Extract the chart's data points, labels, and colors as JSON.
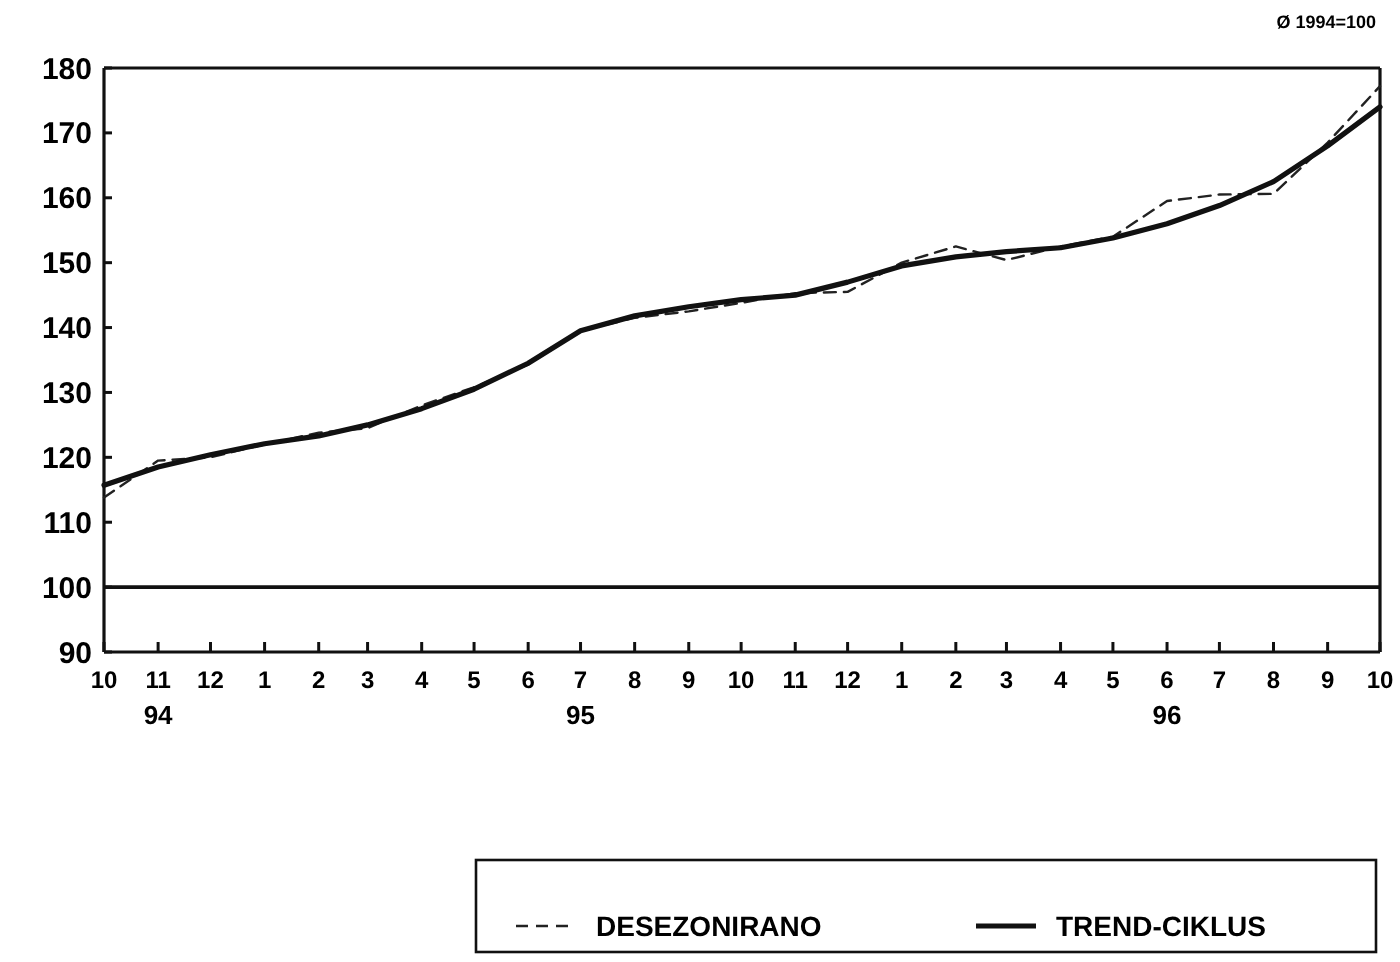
{
  "chart_data": {
    "type": "line",
    "x": [
      "1994-10",
      "1994-11",
      "1994-12",
      "1995-01",
      "1995-02",
      "1995-03",
      "1995-04",
      "1995-05",
      "1995-06",
      "1995-07",
      "1995-08",
      "1995-09",
      "1995-10",
      "1995-11",
      "1995-12",
      "1996-01",
      "1996-02",
      "1996-03",
      "1996-04",
      "1996-05",
      "1996-06",
      "1996-07",
      "1996-08",
      "1996-09",
      "1996-10"
    ],
    "series": [
      {
        "name": "DESEZONIRANO",
        "color": "#222222",
        "line_style": "dashed",
        "values": [
          113.8,
          119.5,
          120,
          122,
          123.8,
          124.5,
          128,
          130.8,
          134.3,
          139.5,
          141.5,
          142.5,
          143.8,
          145.3,
          145.5,
          150,
          152.5,
          150.4,
          152.5,
          154,
          159.5,
          160.5,
          160.6,
          168.5,
          177.2
        ]
      },
      {
        "name": "TREND-CIKLUS",
        "color": "#111111",
        "line_style": "solid",
        "values": [
          115.7,
          118.5,
          120.4,
          122.1,
          123.3,
          125,
          127.5,
          130.5,
          134.5,
          139.5,
          141.8,
          143.2,
          144.3,
          145,
          147,
          149.5,
          150.9,
          151.7,
          152.3,
          153.8,
          156,
          158.8,
          162.5,
          168,
          174
        ]
      }
    ],
    "xlim": [
      "1994-10",
      "1996-10"
    ],
    "xticks": [
      {
        "value": "1994-10",
        "label": "10"
      },
      {
        "value": "1994-11",
        "label": "11"
      },
      {
        "value": "1994-12",
        "label": "12"
      },
      {
        "value": "1995-01",
        "label": "1"
      },
      {
        "value": "1995-02",
        "label": "2"
      },
      {
        "value": "1995-03",
        "label": "3"
      },
      {
        "value": "1995-04",
        "label": "4"
      },
      {
        "value": "1995-05",
        "label": "5"
      },
      {
        "value": "1995-06",
        "label": "6"
      },
      {
        "value": "1995-07",
        "label": "7"
      },
      {
        "value": "1995-08",
        "label": "8"
      },
      {
        "value": "1995-09",
        "label": "9"
      },
      {
        "value": "1995-10",
        "label": "10"
      },
      {
        "value": "1995-11",
        "label": "11"
      },
      {
        "value": "1995-12",
        "label": "12"
      },
      {
        "value": "1996-01",
        "label": "1"
      },
      {
        "value": "1996-02",
        "label": "2"
      },
      {
        "value": "1996-03",
        "label": "3"
      },
      {
        "value": "1996-04",
        "label": "4"
      },
      {
        "value": "1996-05",
        "label": "5"
      },
      {
        "value": "1996-06",
        "label": "6"
      },
      {
        "value": "1996-07",
        "label": "7"
      },
      {
        "value": "1996-08",
        "label": "8"
      },
      {
        "value": "1996-09",
        "label": "9"
      },
      {
        "value": "1996-10",
        "label": "10"
      }
    ],
    "ylim": [
      90,
      180
    ],
    "yticks": [
      90,
      100,
      110,
      120,
      130,
      140,
      150,
      160,
      170,
      180
    ],
    "ref_lines": [
      {
        "axis": "y",
        "value": 100
      }
    ],
    "annotations": [
      "Ø 1994=100",
      "94",
      "95",
      "96"
    ],
    "legend": "bottom right",
    "grid": false
  }
}
